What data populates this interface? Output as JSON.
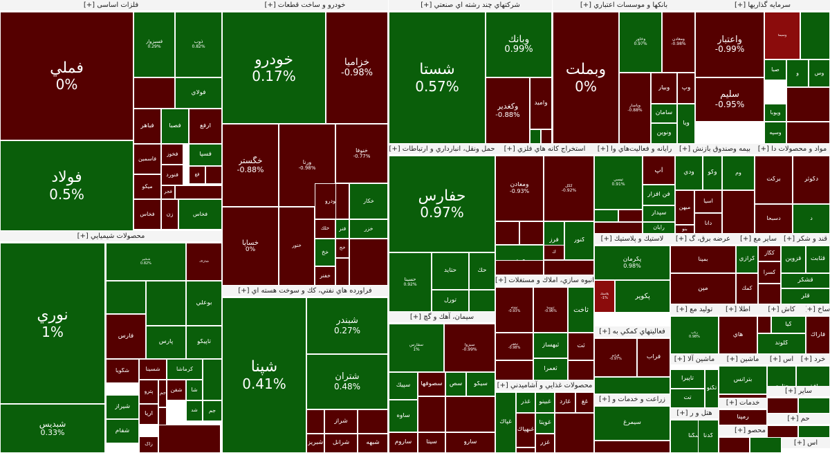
{
  "chart_data": {
    "type": "heatmap",
    "colors": {
      "positive": "#0a5e0a",
      "negative": "#550000",
      "strong_negative": "#8b0c0c",
      "border": "#ffffff",
      "title_bg": "#f4f4f4",
      "title_text": "#222222"
    },
    "sectors": [
      {
        "title": "فلزات اساسی [+]",
        "tiles": [
          {
            "name": "فملي",
            "value": "0%",
            "sign": "neg"
          },
          {
            "name": "فولاد",
            "value": "0.5%",
            "sign": "pos"
          },
          {
            "name": "فسبزوار",
            "value": "0.29%",
            "sign": "pos"
          },
          {
            "name": "ذوب",
            "value": "0.82%",
            "sign": "pos"
          },
          {
            "name": "فولاي",
            "sign": "pos"
          },
          {
            "name": "فخاس",
            "sign": "neg"
          },
          {
            "name": "فباهر",
            "sign": "neg"
          },
          {
            "name": "فصبا",
            "sign": "pos"
          },
          {
            "name": "ارفع",
            "sign": "neg"
          },
          {
            "name": "فاسمين",
            "sign": "neg"
          },
          {
            "name": "فخوز",
            "sign": "neg"
          },
          {
            "name": "فسپا",
            "sign": "pos"
          },
          {
            "name": "فنورد",
            "sign": "neg"
          },
          {
            "name": "فغ",
            "sign": "neg"
          },
          {
            "name": "ميكو",
            "sign": "neg"
          },
          {
            "name": "فجر",
            "sign": "neg"
          },
          {
            "name": "زن",
            "sign": "neg"
          },
          {
            "name": "فخاس",
            "sign": "pos"
          }
        ]
      },
      {
        "title": "خودرو و ساخت قطعات [+]",
        "tiles": [
          {
            "name": "خودرو",
            "value": "0.17%",
            "sign": "pos"
          },
          {
            "name": "خزاميا",
            "value": "-0.98%",
            "sign": "neg"
          },
          {
            "name": "خگستر",
            "value": "-0.88%",
            "sign": "neg"
          },
          {
            "name": "ورنا",
            "value": "-0.98%",
            "sign": "neg"
          },
          {
            "name": "خنوفا",
            "value": "-0.77%",
            "sign": "neg"
          },
          {
            "name": "خساپا",
            "value": "0%",
            "sign": "neg"
          },
          {
            "name": "خودرو",
            "sign": "neg"
          },
          {
            "name": "خكار",
            "sign": "pos"
          },
          {
            "name": "خزر",
            "sign": "pos"
          },
          {
            "name": "فنر",
            "sign": "pos"
          },
          {
            "name": "خلك",
            "sign": "neg"
          },
          {
            "name": "خج",
            "sign": "neg"
          },
          {
            "name": "خخ",
            "sign": "pos"
          },
          {
            "name": "خفنر",
            "sign": "neg"
          },
          {
            "name": "ختور",
            "sign": "neg"
          }
        ]
      },
      {
        "title": "شرکتهاي چند رشته اي صنعتي [+]",
        "tiles": [
          {
            "name": "شستا",
            "value": "0.57%",
            "sign": "pos"
          },
          {
            "name": "وبانك",
            "value": "0.99%",
            "sign": "pos"
          },
          {
            "name": "وكغدير",
            "value": "-0.88%",
            "sign": "neg"
          },
          {
            "name": "واميد",
            "sign": "neg"
          }
        ]
      },
      {
        "title": "بانکها و موسسات اعتباري [+]",
        "tiles": [
          {
            "name": "وبملت",
            "value": "0%",
            "sign": "neg"
          },
          {
            "name": "وخاور",
            "value": "0.97%",
            "sign": "pos"
          },
          {
            "name": "ومعادن",
            "value": "-0.98%",
            "sign": "neg"
          },
          {
            "name": "وپاسار",
            "value": "-0.88%",
            "sign": "neg"
          },
          {
            "name": "وبيار",
            "sign": "neg"
          },
          {
            "name": "وپ",
            "sign": "neg"
          },
          {
            "name": "سامان",
            "sign": "pos"
          },
          {
            "name": "ونوين",
            "sign": "pos"
          },
          {
            "name": "ويا",
            "sign": "pos"
          }
        ]
      },
      {
        "title": "سرمايه گذاريها [+]",
        "tiles": [
          {
            "name": "واعتبار",
            "value": "-0.99%",
            "sign": "neg"
          },
          {
            "name": "سليم",
            "value": "-0.95%",
            "sign": "neg"
          },
          {
            "name": "وسپه",
            "sign": "pos"
          },
          {
            "name": "ويوبا",
            "sign": "pos"
          },
          {
            "name": "صبا",
            "sign": "pos"
          },
          {
            "name": "وس",
            "sign": "pos"
          },
          {
            "name": "و",
            "sign": "pos"
          },
          {
            "name": "وسيما",
            "sign": "strong_neg"
          }
        ]
      },
      {
        "title": "حمل ونقل، انبارداري و ارتباطات [+]",
        "tiles": [
          {
            "name": "حفارس",
            "value": "0.97%",
            "sign": "pos"
          },
          {
            "name": "حسينا",
            "value": "0.92%",
            "sign": "pos"
          },
          {
            "name": "حتايد",
            "sign": "pos"
          },
          {
            "name": "حك",
            "sign": "pos"
          },
          {
            "name": "تورل",
            "sign": "pos"
          }
        ]
      },
      {
        "title": "استخراج کانه هاي فلزي [+]",
        "tiles": [
          {
            "name": "ومعادن",
            "value": "-0.93%",
            "sign": "neg"
          },
          {
            "name": "كگل",
            "value": "-0.92%",
            "sign": "neg"
          },
          {
            "name": "كنور",
            "sign": "pos"
          },
          {
            "name": "فرز",
            "sign": "pos"
          },
          {
            "name": "كجاد",
            "sign": "pos"
          },
          {
            "name": "ك",
            "sign": "neg"
          }
        ]
      },
      {
        "title": "رايانه و فعاليت‌هاي وا [+]",
        "tiles": [
          {
            "name": "تيسي",
            "value": "0.91%",
            "sign": "pos"
          },
          {
            "name": "آپ",
            "sign": "neg"
          },
          {
            "name": "فن افزار",
            "sign": "pos"
          },
          {
            "name": "سپدار",
            "sign": "pos"
          },
          {
            "name": "رايان",
            "sign": "pos"
          }
        ]
      },
      {
        "title": "بيمه وصندوق بازنش [+]",
        "tiles": [
          {
            "name": "وكو",
            "sign": "pos"
          },
          {
            "name": "ودي",
            "sign": "pos"
          },
          {
            "name": "وم",
            "sign": "pos"
          },
          {
            "name": "آسيا",
            "sign": "neg"
          },
          {
            "name": "دانا",
            "sign": "neg"
          },
          {
            "name": "بنو",
            "sign": "neg"
          },
          {
            "name": "ميهن",
            "sign": "neg"
          }
        ]
      },
      {
        "title": "مواد و محصولات دا [+]",
        "tiles": [
          {
            "name": "بركت",
            "sign": "neg"
          },
          {
            "name": "دكوثر",
            "sign": "neg"
          },
          {
            "name": "دسبحا",
            "sign": "neg"
          },
          {
            "name": "د",
            "sign": "pos"
          }
        ]
      },
      {
        "title": "محصولات شيميايي [+]",
        "tiles": [
          {
            "name": "نوري",
            "value": "1%",
            "sign": "pos"
          },
          {
            "name": "شبديس",
            "value": "0.33%",
            "sign": "pos"
          },
          {
            "name": "شكبير",
            "value": "0.82%",
            "sign": "pos"
          },
          {
            "name": "شاراك",
            "sign": "neg"
          },
          {
            "name": "بوعلي",
            "sign": "pos"
          },
          {
            "name": "فارس",
            "sign": "neg"
          },
          {
            "name": "پارس",
            "sign": "pos"
          },
          {
            "name": "تاپيكو",
            "sign": "pos"
          },
          {
            "name": "شگويا",
            "sign": "neg"
          },
          {
            "name": "شسينا",
            "sign": "neg"
          },
          {
            "name": "شفن",
            "sign": "neg"
          },
          {
            "name": "كرماشا",
            "sign": "pos"
          },
          {
            "name": "شيراز",
            "sign": "pos"
          },
          {
            "name": "شفام",
            "sign": "pos"
          },
          {
            "name": "آريا",
            "sign": "neg"
          },
          {
            "name": "زاگ",
            "sign": "neg"
          },
          {
            "name": "جم پيلن",
            "sign": "neg"
          },
          {
            "name": "شا",
            "sign": "pos"
          },
          {
            "name": "پترو",
            "sign": "neg"
          },
          {
            "name": "جم",
            "sign": "pos"
          },
          {
            "name": "شد",
            "sign": "pos"
          }
        ]
      },
      {
        "title": "فراورده هاي نفتي، كك و سوخت هسته اي [+]",
        "tiles": [
          {
            "name": "شپنا",
            "value": "0.41%",
            "sign": "pos"
          },
          {
            "name": "شبندر",
            "value": "0.27%",
            "sign": "pos"
          },
          {
            "name": "شتران",
            "value": "0.48%",
            "sign": "pos"
          },
          {
            "name": "شراز",
            "sign": "neg"
          },
          {
            "name": "شرانل",
            "sign": "neg"
          },
          {
            "name": "شبريز",
            "sign": "neg"
          },
          {
            "name": "شبهه",
            "sign": "neg"
          }
        ]
      },
      {
        "title": "سيمان، آهك و گچ [+]",
        "tiles": [
          {
            "name": "سفارس",
            "value": "1%",
            "sign": "pos"
          },
          {
            "name": "سبزوا",
            "value": "-0.99%",
            "sign": "neg"
          },
          {
            "name": "سپيك",
            "sign": "pos"
          },
          {
            "name": "سصوفها",
            "sign": "neg"
          },
          {
            "name": "سص",
            "sign": "pos"
          },
          {
            "name": "سيكو",
            "sign": "pos"
          },
          {
            "name": "ساوه",
            "sign": "pos"
          },
          {
            "name": "سيتا",
            "sign": "neg"
          },
          {
            "name": "سارو",
            "sign": "neg"
          },
          {
            "name": "ساروم",
            "sign": "neg"
          }
        ]
      },
      {
        "title": "انبوه سازي، املاك و مستغلات [+]",
        "tiles": [
          {
            "name": "ثشاه",
            "value": "-0.93%",
            "sign": "neg"
          },
          {
            "name": "ثنوسا",
            "value": "-0.96%",
            "sign": "neg"
          },
          {
            "name": "ثاخت",
            "sign": "pos"
          },
          {
            "name": "ثت",
            "sign": "neg"
          },
          {
            "name": "ثباهنر",
            "value": "-0.98%",
            "sign": "neg"
          },
          {
            "name": "ثبهساز",
            "sign": "pos"
          },
          {
            "name": "ثعمرا",
            "sign": "pos"
          }
        ]
      },
      {
        "title": "محصولات غذايي و آشاميدني [+]",
        "tiles": [
          {
            "name": "غپاك",
            "sign": "pos"
          },
          {
            "name": "غذر",
            "sign": "pos"
          },
          {
            "name": "غبهپاك",
            "sign": "neg"
          },
          {
            "name": "غبينو",
            "sign": "pos"
          },
          {
            "name": "غويتا",
            "sign": "pos"
          },
          {
            "name": "غزر",
            "sign": "neg"
          },
          {
            "name": "غآرد",
            "sign": "neg"
          },
          {
            "name": "غغ",
            "sign": "neg"
          }
        ]
      },
      {
        "title": "لاستيك و پلاستيك [+]",
        "tiles": [
          {
            "name": "پكرمان",
            "value": "0.98%",
            "sign": "pos"
          },
          {
            "name": "پكوير",
            "sign": "pos"
          },
          {
            "name": "پلاسك",
            "value": "-1%",
            "sign": "strong_neg"
          }
        ]
      },
      {
        "title": "عرضه برق، گ [+]",
        "tiles": [
          {
            "name": "بمپنا",
            "sign": "neg"
          },
          {
            "name": "مپن",
            "sign": "neg"
          }
        ]
      },
      {
        "title": "ساير مع [+]",
        "tiles": [
          {
            "name": "كرازي",
            "sign": "pos"
          },
          {
            "name": "كسرا",
            "sign": "neg"
          },
          {
            "name": "كگاز",
            "sign": "neg"
          },
          {
            "name": "كمك",
            "sign": "neg"
          }
        ]
      },
      {
        "title": "قند و شكر [+]",
        "tiles": [
          {
            "name": "قزوين",
            "sign": "pos"
          },
          {
            "name": "قثابت",
            "sign": "pos"
          },
          {
            "name": "قشكر",
            "sign": "pos"
          },
          {
            "name": "قلر",
            "sign": "pos"
          }
        ]
      },
      {
        "title": "فعاليتهاي كمكي به [+]",
        "tiles": [
          {
            "name": "فرابو",
            "value": "-0.97%",
            "sign": "neg"
          },
          {
            "name": "فراب",
            "sign": "neg"
          }
        ]
      },
      {
        "title": "توليد مع [+]",
        "tiles": [
          {
            "name": "رتاپ",
            "value": "0.98%",
            "sign": "pos"
          }
        ]
      },
      {
        "title": "اطلا [+]",
        "tiles": [
          {
            "name": "هاي",
            "sign": "neg"
          }
        ]
      },
      {
        "title": "كاش [+]",
        "tiles": [
          {
            "name": "كيا",
            "sign": "pos"
          },
          {
            "name": "كلوند",
            "sign": "pos"
          }
        ]
      },
      {
        "title": "ساخ [+]",
        "tiles": [
          {
            "name": "فاراك",
            "sign": "neg"
          }
        ]
      },
      {
        "title": "ماشين آلا [+]",
        "tiles": [
          {
            "name": "تاپيرا",
            "sign": "pos"
          },
          {
            "name": "تت",
            "sign": "pos"
          },
          {
            "name": "تكنو",
            "sign": "pos"
          }
        ]
      },
      {
        "title": "ماشين [+]",
        "tiles": [
          {
            "name": "بترانس",
            "sign": "pos"
          },
          {
            "name": "بكام",
            "sign": "neg"
          }
        ]
      },
      {
        "title": "اس [+]",
        "tiles": [
          {
            "name": "حتاري",
            "sign": "pos"
          }
        ]
      },
      {
        "title": "خرد [+]",
        "tiles": [
          {
            "name": "افق",
            "sign": "pos"
          }
        ]
      },
      {
        "title": "زراعت و خدمات و [+]",
        "tiles": [
          {
            "name": "سيمرغ",
            "sign": "pos"
          }
        ]
      },
      {
        "title": "هتل و ر [+]",
        "tiles": [
          {
            "name": "سگنا",
            "sign": "pos"
          },
          {
            "name": "گدنا",
            "sign": "pos"
          }
        ]
      },
      {
        "title": "خدمات [+]",
        "tiles": [
          {
            "name": "رمپنا",
            "sign": "neg"
          }
        ]
      },
      {
        "title": "ساير [+]",
        "tiles": []
      },
      {
        "title": "محصو [+]",
        "tiles": []
      },
      {
        "title": "حم [+]",
        "tiles": []
      },
      {
        "title": "اس [+]",
        "tiles": []
      }
    ]
  }
}
